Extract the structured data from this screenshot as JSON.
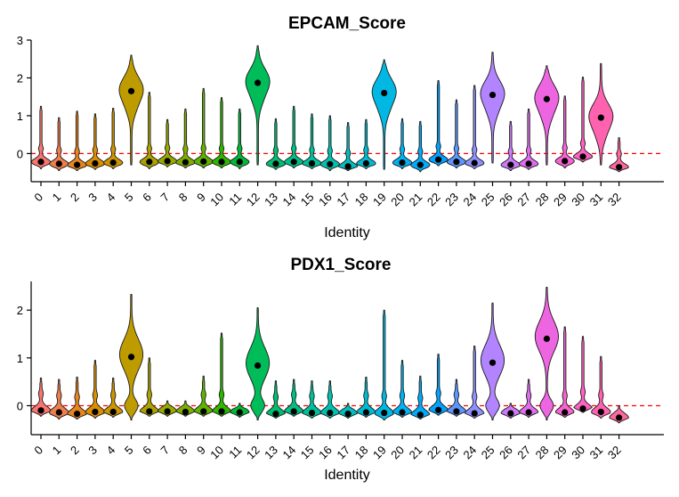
{
  "chart_data": [
    {
      "type": "violin",
      "title": "EPCAM_Score",
      "xlabel": "Identity",
      "ylabel": "",
      "categories": [
        "0",
        "1",
        "2",
        "3",
        "4",
        "5",
        "6",
        "7",
        "8",
        "9",
        "10",
        "11",
        "12",
        "13",
        "14",
        "15",
        "16",
        "17",
        "18",
        "19",
        "20",
        "21",
        "22",
        "23",
        "24",
        "25",
        "26",
        "27",
        "28",
        "29",
        "30",
        "31",
        "32"
      ],
      "yticks": [
        0,
        1,
        2,
        3
      ],
      "ylim": [
        -0.65,
        3.0
      ],
      "reference_line": 0,
      "colors": [
        "#F8766D",
        "#F07E4D",
        "#E7851E",
        "#DB8E00",
        "#CE9500",
        "#BE9C00",
        "#ACA300",
        "#98A900",
        "#80AE00",
        "#61B300",
        "#2EB700",
        "#00BA38",
        "#00BC59",
        "#00BE71",
        "#00C087",
        "#00C19B",
        "#00C0AE",
        "#00BFC0",
        "#00BCD1",
        "#00B8E3",
        "#00B2F3",
        "#00ABFD",
        "#00A2FF",
        "#5C97FF",
        "#8F91FF",
        "#B284FF",
        "#CC7AF8",
        "#E06DF0",
        "#EE65E2",
        "#F863D2",
        "#FF62C2",
        "#FF63AF",
        "#FF689E"
      ],
      "medians": [
        -0.22,
        -0.27,
        -0.3,
        -0.26,
        -0.24,
        1.65,
        -0.22,
        -0.2,
        -0.23,
        -0.21,
        -0.22,
        -0.22,
        1.87,
        -0.27,
        -0.22,
        -0.26,
        -0.28,
        -0.34,
        -0.26,
        1.6,
        -0.24,
        -0.3,
        -0.16,
        -0.22,
        -0.25,
        1.55,
        -0.3,
        -0.27,
        1.44,
        -0.2,
        -0.08,
        0.95,
        -0.36
      ],
      "maxima": [
        1.25,
        0.95,
        1.12,
        1.05,
        1.2,
        2.6,
        1.62,
        0.9,
        1.18,
        1.72,
        1.48,
        1.18,
        2.85,
        0.92,
        1.25,
        1.05,
        1.0,
        0.82,
        0.9,
        2.48,
        0.92,
        0.85,
        1.93,
        1.42,
        1.8,
        2.68,
        0.85,
        1.18,
        2.32,
        1.52,
        2.02,
        2.38,
        0.42
      ],
      "minima": [
        -0.4,
        -0.45,
        -0.45,
        -0.42,
        -0.4,
        -0.3,
        -0.4,
        -0.35,
        -0.38,
        -0.38,
        -0.38,
        -0.4,
        -0.3,
        -0.42,
        -0.38,
        -0.4,
        -0.45,
        -0.45,
        -0.4,
        -0.42,
        -0.4,
        -0.48,
        -0.32,
        -0.38,
        -0.4,
        -0.25,
        -0.45,
        -0.42,
        -0.3,
        -0.38,
        -0.22,
        -0.3,
        -0.48
      ]
    },
    {
      "type": "violin",
      "title": "PDX1_Score",
      "xlabel": "Identity",
      "ylabel": "",
      "categories": [
        "0",
        "1",
        "2",
        "3",
        "4",
        "5",
        "6",
        "7",
        "8",
        "9",
        "10",
        "11",
        "12",
        "13",
        "14",
        "15",
        "16",
        "17",
        "18",
        "19",
        "20",
        "21",
        "22",
        "23",
        "24",
        "25",
        "26",
        "27",
        "28",
        "29",
        "30",
        "31",
        "32"
      ],
      "yticks": [
        0,
        1,
        2
      ],
      "ylim": [
        -0.55,
        2.6
      ],
      "reference_line": 0,
      "colors": [
        "#F8766D",
        "#F07E4D",
        "#E7851E",
        "#DB8E00",
        "#CE9500",
        "#BE9C00",
        "#ACA300",
        "#98A900",
        "#80AE00",
        "#61B300",
        "#2EB700",
        "#00BA38",
        "#00BC59",
        "#00BE71",
        "#00C087",
        "#00C19B",
        "#00C0AE",
        "#00BFC0",
        "#00BCD1",
        "#00B8E3",
        "#00B2F3",
        "#00ABFD",
        "#00A2FF",
        "#5C97FF",
        "#8F91FF",
        "#B284FF",
        "#CC7AF8",
        "#E06DF0",
        "#EE65E2",
        "#F863D2",
        "#FF62C2",
        "#FF63AF",
        "#FF689E"
      ],
      "medians": [
        -0.1,
        -0.14,
        -0.17,
        -0.13,
        -0.13,
        1.02,
        -0.12,
        -0.12,
        -0.13,
        -0.12,
        -0.12,
        -0.14,
        0.84,
        -0.17,
        -0.12,
        -0.15,
        -0.15,
        -0.17,
        -0.14,
        -0.15,
        -0.14,
        -0.19,
        -0.09,
        -0.12,
        -0.16,
        0.9,
        -0.16,
        -0.14,
        1.4,
        -0.14,
        -0.06,
        -0.13,
        -0.25
      ],
      "maxima": [
        0.58,
        0.55,
        0.6,
        0.95,
        0.58,
        2.33,
        1.0,
        0.1,
        0.1,
        0.62,
        1.52,
        0.05,
        2.05,
        0.52,
        0.55,
        0.52,
        0.52,
        0.05,
        0.6,
        2.0,
        0.95,
        0.62,
        1.08,
        0.55,
        1.25,
        2.15,
        0.05,
        0.55,
        2.48,
        1.65,
        1.45,
        1.03,
        0.0
      ],
      "minima": [
        -0.22,
        -0.28,
        -0.28,
        -0.26,
        -0.24,
        -0.3,
        -0.22,
        -0.22,
        -0.22,
        -0.22,
        -0.22,
        -0.24,
        -0.3,
        -0.26,
        -0.22,
        -0.26,
        -0.26,
        -0.26,
        -0.24,
        -0.3,
        -0.24,
        -0.28,
        -0.2,
        -0.22,
        -0.26,
        -0.3,
        -0.26,
        -0.24,
        -0.3,
        -0.24,
        -0.14,
        -0.26,
        -0.36
      ]
    }
  ]
}
